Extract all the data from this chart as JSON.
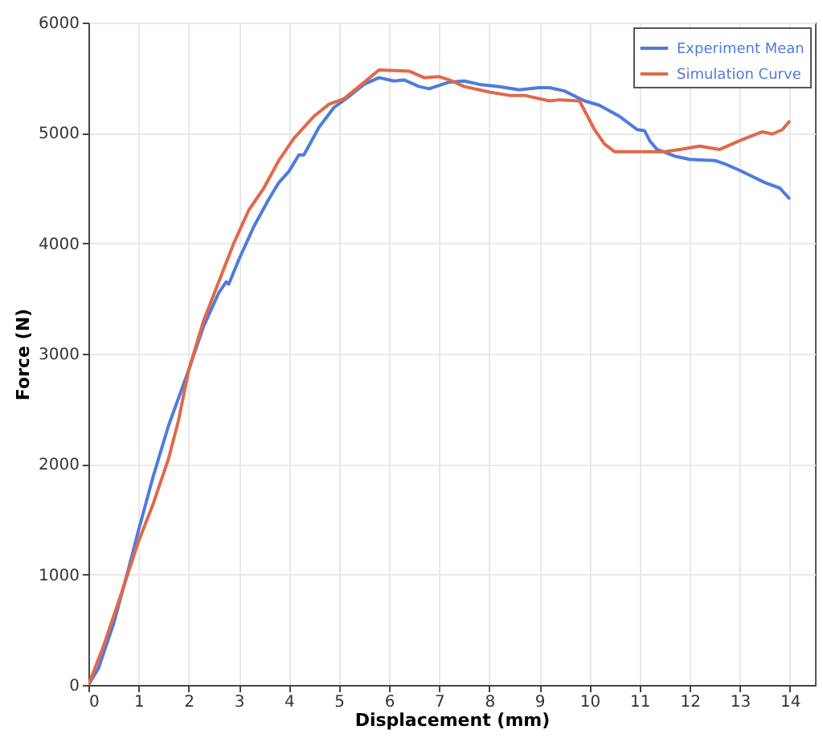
{
  "chart_data": {
    "type": "line",
    "xlabel": "Displacement (mm)",
    "ylabel": "Force (N)",
    "xlim": [
      0,
      14.5
    ],
    "ylim": [
      0,
      6000
    ],
    "xticks": [
      0,
      1,
      2,
      3,
      4,
      5,
      6,
      7,
      8,
      9,
      10,
      11,
      12,
      13,
      14
    ],
    "yticks": [
      0,
      1000,
      2000,
      3000,
      4000,
      5000,
      6000
    ],
    "grid": true,
    "legend": "top right",
    "line_style": "solid",
    "marker": "none",
    "series": [
      {
        "name": "Experiment Mean",
        "color": "#4f7bdc",
        "x": [
          0,
          0.2,
          0.5,
          0.8,
          1.0,
          1.3,
          1.6,
          2.0,
          2.3,
          2.6,
          2.75,
          2.8,
          3.0,
          3.3,
          3.6,
          3.8,
          4.0,
          4.2,
          4.3,
          4.6,
          4.9,
          5.2,
          5.5,
          5.8,
          6.1,
          6.3,
          6.6,
          6.8,
          7.2,
          7.5,
          7.8,
          8.2,
          8.6,
          9.0,
          9.2,
          9.5,
          9.9,
          10.2,
          10.6,
          10.95,
          11.1,
          11.2,
          11.35,
          11.7,
          12.0,
          12.5,
          12.7,
          13.0,
          13.5,
          13.8,
          14.0
        ],
        "values": [
          0,
          150,
          550,
          1050,
          1400,
          1900,
          2350,
          2850,
          3250,
          3550,
          3650,
          3630,
          3850,
          4150,
          4400,
          4550,
          4650,
          4800,
          4800,
          5050,
          5230,
          5330,
          5440,
          5500,
          5470,
          5480,
          5420,
          5400,
          5460,
          5470,
          5440,
          5420,
          5390,
          5410,
          5410,
          5380,
          5290,
          5250,
          5150,
          5030,
          5020,
          4930,
          4850,
          4790,
          4760,
          4750,
          4720,
          4660,
          4550,
          4500,
          4400
        ]
      },
      {
        "name": "Simulation Curve",
        "color": "#e0694a",
        "x": [
          0,
          0.3,
          0.6,
          1.0,
          1.3,
          1.6,
          1.8,
          2.0,
          2.3,
          2.6,
          2.9,
          3.2,
          3.5,
          3.8,
          4.1,
          4.5,
          4.8,
          5.1,
          5.4,
          5.8,
          6.4,
          6.6,
          6.7,
          7.0,
          7.2,
          7.5,
          8.0,
          8.4,
          8.7,
          9.2,
          9.4,
          9.8,
          10.1,
          10.3,
          10.5,
          11.0,
          11.5,
          11.8,
          12.2,
          12.6,
          13.0,
          13.45,
          13.65,
          13.85,
          14.0
        ],
        "values": [
          0,
          350,
          750,
          1300,
          1650,
          2050,
          2400,
          2850,
          3300,
          3650,
          4000,
          4300,
          4500,
          4750,
          4950,
          5150,
          5260,
          5310,
          5420,
          5570,
          5560,
          5520,
          5500,
          5510,
          5480,
          5420,
          5370,
          5340,
          5340,
          5290,
          5300,
          5290,
          5030,
          4900,
          4830,
          4830,
          4830,
          4850,
          4880,
          4850,
          4930,
          5010,
          4990,
          5030,
          5110
        ]
      }
    ]
  }
}
